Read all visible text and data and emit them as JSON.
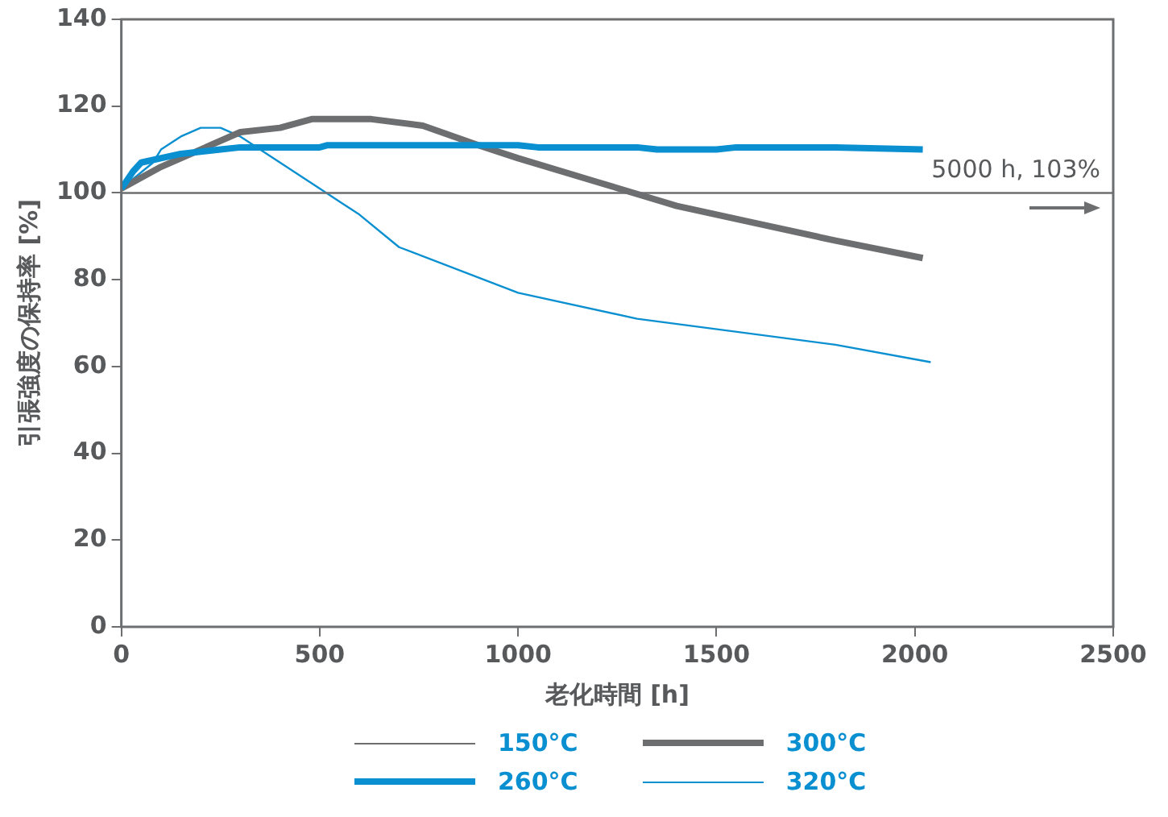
{
  "chart_data": {
    "type": "line",
    "xlabel": "老化時間 [h]",
    "ylabel": "引張強度の保持率 [%]",
    "xlim": [
      0,
      2500
    ],
    "xticks": [
      0,
      500,
      1000,
      1500,
      2000,
      2500
    ],
    "ylim": [
      0,
      140
    ],
    "yticks": [
      0,
      20,
      40,
      60,
      80,
      100,
      120,
      140
    ],
    "legend": "bottom",
    "marker": "none",
    "line_style": "solid",
    "annotations": [
      "5000 h, 103%"
    ],
    "series": [
      {
        "name": "150°C",
        "color": "#6d6e70",
        "x": [
          0,
          2500
        ],
        "values": [
          100,
          100
        ]
      },
      {
        "name": "260°C",
        "color": "#0a8fd1",
        "x": [
          0,
          30,
          50,
          150,
          250,
          300,
          500,
          520,
          1000,
          1050,
          1300,
          1350,
          1500,
          1550,
          1800,
          2020
        ],
        "values": [
          101,
          105,
          107,
          109,
          110,
          110.5,
          110.5,
          111,
          111,
          110.5,
          110.5,
          110,
          110,
          110.5,
          110.5,
          110
        ]
      },
      {
        "name": "300°C",
        "color": "#6d6e70",
        "x": [
          0,
          100,
          200,
          300,
          400,
          480,
          630,
          760,
          900,
          1000,
          1200,
          1400,
          1600,
          1800,
          2020
        ],
        "values": [
          101,
          106,
          110,
          114,
          115,
          117,
          117,
          115.5,
          111,
          108,
          102.5,
          97,
          93,
          89,
          85
        ]
      },
      {
        "name": "320°C",
        "color": "#0a8fd1",
        "x": [
          0,
          80,
          100,
          150,
          200,
          250,
          300,
          400,
          500,
          550,
          600,
          700,
          1000,
          1300,
          1800,
          2040
        ],
        "values": [
          101,
          107,
          110,
          113,
          115,
          115,
          113,
          107,
          101,
          98,
          95,
          87.5,
          77,
          71,
          65,
          61
        ]
      }
    ]
  }
}
